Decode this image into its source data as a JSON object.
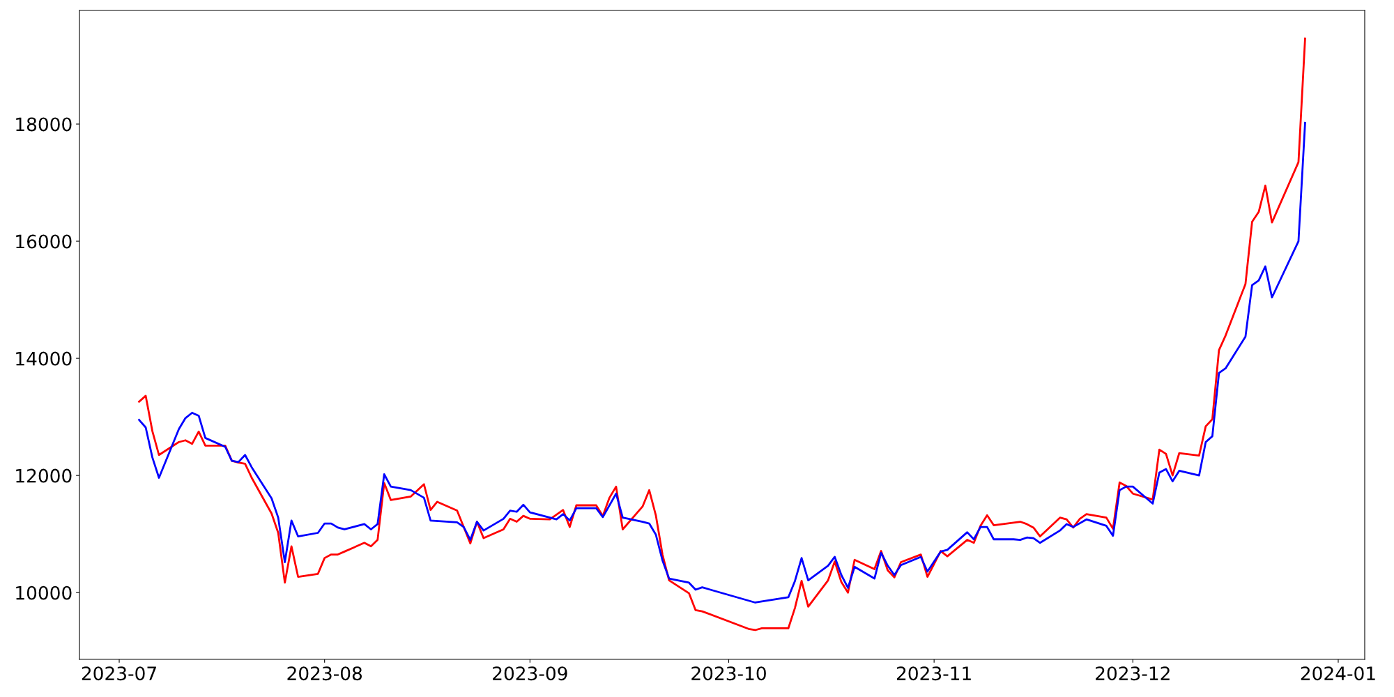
{
  "chart_data": {
    "type": "line",
    "xlim": [
      "2023-06-25",
      "2024-01-05"
    ],
    "ylim": [
      8860,
      19940
    ],
    "xticks": [
      {
        "value": "2023-07-01",
        "label": "2023-07"
      },
      {
        "value": "2023-08-01",
        "label": "2023-08"
      },
      {
        "value": "2023-09-01",
        "label": "2023-09"
      },
      {
        "value": "2023-10-01",
        "label": "2023-10"
      },
      {
        "value": "2023-11-01",
        "label": "2023-11"
      },
      {
        "value": "2023-12-01",
        "label": "2023-12"
      },
      {
        "value": "2024-01-01",
        "label": "2024-01"
      }
    ],
    "yticks": [
      10000,
      12000,
      14000,
      16000,
      18000
    ],
    "grid": false,
    "legend": false,
    "series": [
      {
        "color": "#ff0000",
        "x": [
          "2023-07-04",
          "2023-07-05",
          "2023-07-06",
          "2023-07-07",
          "2023-07-10",
          "2023-07-11",
          "2023-07-12",
          "2023-07-13",
          "2023-07-14",
          "2023-07-17",
          "2023-07-18",
          "2023-07-19",
          "2023-07-20",
          "2023-07-21",
          "2023-07-24",
          "2023-07-25",
          "2023-07-26",
          "2023-07-27",
          "2023-07-28",
          "2023-07-31",
          "2023-08-01",
          "2023-08-02",
          "2023-08-03",
          "2023-08-04",
          "2023-08-07",
          "2023-08-08",
          "2023-08-09",
          "2023-08-10",
          "2023-08-11",
          "2023-08-14",
          "2023-08-16",
          "2023-08-17",
          "2023-08-18",
          "2023-08-21",
          "2023-08-23",
          "2023-08-24",
          "2023-08-25",
          "2023-08-28",
          "2023-08-29",
          "2023-08-30",
          "2023-08-31",
          "2023-09-01",
          "2023-09-04",
          "2023-09-06",
          "2023-09-07",
          "2023-09-08",
          "2023-09-11",
          "2023-09-12",
          "2023-09-13",
          "2023-09-14",
          "2023-09-15",
          "2023-09-18",
          "2023-09-19",
          "2023-09-20",
          "2023-09-21",
          "2023-09-22",
          "2023-09-25",
          "2023-09-26",
          "2023-09-27",
          "2023-10-04",
          "2023-10-05",
          "2023-10-06",
          "2023-10-10",
          "2023-10-11",
          "2023-10-12",
          "2023-10-13",
          "2023-10-16",
          "2023-10-17",
          "2023-10-18",
          "2023-10-19",
          "2023-10-20",
          "2023-10-23",
          "2023-10-24",
          "2023-10-25",
          "2023-10-26",
          "2023-10-27",
          "2023-10-30",
          "2023-10-31",
          "2023-11-02",
          "2023-11-03",
          "2023-11-06",
          "2023-11-07",
          "2023-11-08",
          "2023-11-09",
          "2023-11-10",
          "2023-11-14",
          "2023-11-15",
          "2023-11-16",
          "2023-11-17",
          "2023-11-20",
          "2023-11-21",
          "2023-11-22",
          "2023-11-23",
          "2023-11-24",
          "2023-11-27",
          "2023-11-28",
          "2023-11-29",
          "2023-11-30",
          "2023-12-01",
          "2023-12-04",
          "2023-12-05",
          "2023-12-06",
          "2023-12-07",
          "2023-12-08",
          "2023-12-11",
          "2023-12-12",
          "2023-12-13",
          "2023-12-14",
          "2023-12-15",
          "2023-12-18",
          "2023-12-19",
          "2023-12-20",
          "2023-12-21",
          "2023-12-22",
          "2023-12-26",
          "2023-12-27"
        ],
        "values": [
          13260,
          13360,
          12760,
          12350,
          12570,
          12600,
          12540,
          12750,
          12510,
          12510,
          12250,
          12220,
          12200,
          11960,
          11350,
          11020,
          10170,
          10790,
          10270,
          10320,
          10590,
          10650,
          10650,
          10700,
          10850,
          10790,
          10900,
          11870,
          11580,
          11640,
          11850,
          11410,
          11550,
          11400,
          10840,
          11210,
          10930,
          11080,
          11260,
          11210,
          11310,
          11260,
          11250,
          11410,
          11120,
          11490,
          11490,
          11310,
          11620,
          11810,
          11080,
          11470,
          11750,
          11320,
          10650,
          10210,
          9990,
          9700,
          9680,
          9380,
          9360,
          9390,
          9390,
          9740,
          10200,
          9760,
          10210,
          10530,
          10180,
          10000,
          10560,
          10400,
          10710,
          10380,
          10260,
          10520,
          10650,
          10270,
          10710,
          10620,
          10900,
          10850,
          11140,
          11320,
          11150,
          11210,
          11170,
          11110,
          10960,
          11280,
          11250,
          11110,
          11260,
          11340,
          11280,
          11090,
          11880,
          11820,
          11690,
          11590,
          12440,
          12370,
          12000,
          12380,
          12340,
          12840,
          12960,
          14140,
          14390,
          15270,
          16330,
          16500,
          16950,
          16320,
          17350,
          19460
        ]
      },
      {
        "color": "#0000ff",
        "x": [
          "2023-07-04",
          "2023-07-05",
          "2023-07-06",
          "2023-07-07",
          "2023-07-10",
          "2023-07-11",
          "2023-07-12",
          "2023-07-13",
          "2023-07-14",
          "2023-07-17",
          "2023-07-18",
          "2023-07-19",
          "2023-07-20",
          "2023-07-21",
          "2023-07-24",
          "2023-07-25",
          "2023-07-26",
          "2023-07-27",
          "2023-07-28",
          "2023-07-31",
          "2023-08-01",
          "2023-08-02",
          "2023-08-03",
          "2023-08-04",
          "2023-08-07",
          "2023-08-08",
          "2023-08-09",
          "2023-08-10",
          "2023-08-11",
          "2023-08-14",
          "2023-08-16",
          "2023-08-17",
          "2023-08-21",
          "2023-08-22",
          "2023-08-23",
          "2023-08-24",
          "2023-08-25",
          "2023-08-28",
          "2023-08-29",
          "2023-08-30",
          "2023-08-31",
          "2023-09-01",
          "2023-09-05",
          "2023-09-06",
          "2023-09-07",
          "2023-09-08",
          "2023-09-11",
          "2023-09-12",
          "2023-09-14",
          "2023-09-15",
          "2023-09-18",
          "2023-09-19",
          "2023-09-20",
          "2023-09-21",
          "2023-09-22",
          "2023-09-25",
          "2023-09-26",
          "2023-09-27",
          "2023-10-05",
          "2023-10-10",
          "2023-10-11",
          "2023-10-12",
          "2023-10-13",
          "2023-10-16",
          "2023-10-17",
          "2023-10-18",
          "2023-10-19",
          "2023-10-20",
          "2023-10-23",
          "2023-10-24",
          "2023-10-25",
          "2023-10-26",
          "2023-10-27",
          "2023-10-30",
          "2023-10-31",
          "2023-11-02",
          "2023-11-03",
          "2023-11-06",
          "2023-11-07",
          "2023-11-08",
          "2023-11-09",
          "2023-11-10",
          "2023-11-13",
          "2023-11-14",
          "2023-11-15",
          "2023-11-16",
          "2023-11-17",
          "2023-11-20",
          "2023-11-21",
          "2023-11-22",
          "2023-11-24",
          "2023-11-27",
          "2023-11-28",
          "2023-11-29",
          "2023-11-30",
          "2023-12-01",
          "2023-12-04",
          "2023-12-05",
          "2023-12-06",
          "2023-12-07",
          "2023-12-08",
          "2023-12-11",
          "2023-12-12",
          "2023-12-13",
          "2023-12-14",
          "2023-12-15",
          "2023-12-18",
          "2023-12-19",
          "2023-12-20",
          "2023-12-21",
          "2023-12-22",
          "2023-12-26",
          "2023-12-27"
        ],
        "values": [
          12950,
          12820,
          12310,
          11960,
          12790,
          12980,
          13070,
          13020,
          12640,
          12490,
          12250,
          12230,
          12350,
          12140,
          11610,
          11280,
          10520,
          11230,
          10960,
          11020,
          11180,
          11180,
          11110,
          11080,
          11170,
          11080,
          11170,
          12020,
          11810,
          11750,
          11620,
          11230,
          11200,
          11120,
          10900,
          11210,
          11060,
          11260,
          11400,
          11380,
          11500,
          11370,
          11250,
          11340,
          11230,
          11440,
          11440,
          11290,
          11690,
          11280,
          11210,
          11180,
          10990,
          10550,
          10240,
          10170,
          10050,
          10090,
          9830,
          9920,
          10200,
          10590,
          10210,
          10460,
          10610,
          10300,
          10080,
          10440,
          10240,
          10680,
          10460,
          10300,
          10470,
          10610,
          10360,
          10700,
          10730,
          11030,
          10910,
          11120,
          11120,
          10910,
          10910,
          10900,
          10940,
          10930,
          10850,
          11060,
          11170,
          11120,
          11250,
          11140,
          10970,
          11750,
          11810,
          11810,
          11520,
          12050,
          12110,
          11900,
          12080,
          12000,
          12570,
          12670,
          13750,
          13830,
          14370,
          15250,
          15330,
          15570,
          15040,
          16000,
          18020
        ]
      }
    ]
  }
}
